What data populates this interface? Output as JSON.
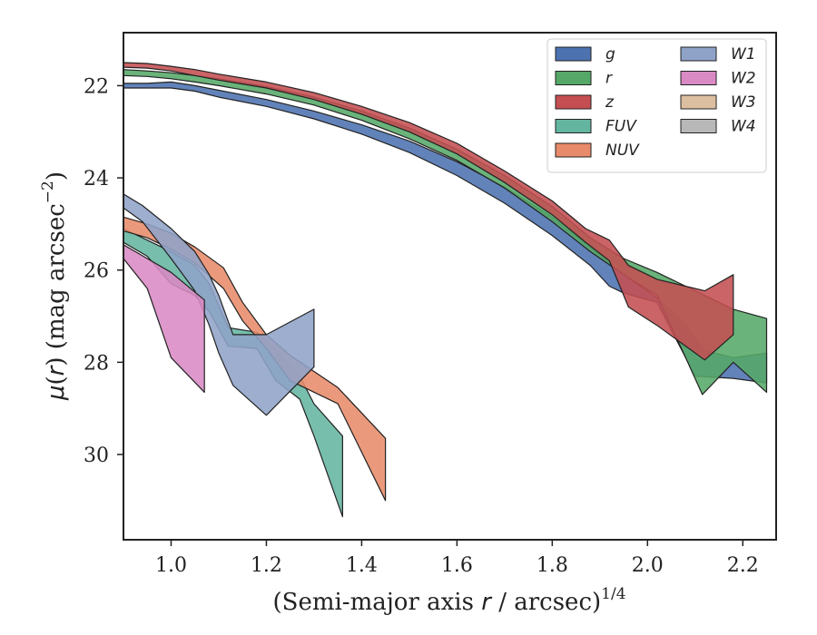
{
  "chart_data": {
    "type": "area",
    "xlabel": "(Semi-major axis r / arcsec)",
    "xlabel_parts": {
      "pre": "(Semi-major axis ",
      "var": "r",
      "post": " / arcsec)",
      "sup": "1/4"
    },
    "ylabel_parts": {
      "mu": "μ",
      "pre": "(",
      "var": "r",
      "post": ") (mag arcsec",
      "sup": "−2",
      "close": ")"
    },
    "xlim": [
      0.9,
      2.27
    ],
    "ylim": [
      31.85,
      20.85
    ],
    "y_inverted": true,
    "xticks": [
      "1.0",
      "1.2",
      "1.4",
      "1.6",
      "1.8",
      "2.0",
      "2.2"
    ],
    "yticks": [
      "22",
      "24",
      "26",
      "28",
      "30"
    ],
    "legend_position": "top-right",
    "legend_columns": 2,
    "series": [
      {
        "name": "g",
        "color": "#4c72b0",
        "upper": [
          [
            0.9,
            21.95
          ],
          [
            0.95,
            21.95
          ],
          [
            1.0,
            21.92
          ],
          [
            1.05,
            22.0
          ],
          [
            1.1,
            22.1
          ],
          [
            1.2,
            22.3
          ],
          [
            1.3,
            22.55
          ],
          [
            1.4,
            22.85
          ],
          [
            1.5,
            23.2
          ],
          [
            1.6,
            23.65
          ],
          [
            1.7,
            24.2
          ],
          [
            1.8,
            24.85
          ],
          [
            1.88,
            25.5
          ],
          [
            1.95,
            26.1
          ],
          [
            2.02,
            26.6
          ],
          [
            2.08,
            27.2
          ],
          [
            2.12,
            27.75
          ],
          [
            2.18,
            27.9
          ],
          [
            2.25,
            27.8
          ]
        ],
        "lower": [
          [
            0.9,
            22.05
          ],
          [
            0.95,
            22.05
          ],
          [
            1.0,
            22.05
          ],
          [
            1.05,
            22.12
          ],
          [
            1.1,
            22.25
          ],
          [
            1.2,
            22.45
          ],
          [
            1.3,
            22.72
          ],
          [
            1.4,
            23.05
          ],
          [
            1.5,
            23.45
          ],
          [
            1.6,
            23.95
          ],
          [
            1.7,
            24.55
          ],
          [
            1.8,
            25.25
          ],
          [
            1.88,
            25.9
          ],
          [
            1.92,
            26.35
          ],
          [
            1.95,
            26.5
          ],
          [
            2.02,
            26.7
          ],
          [
            2.1,
            28.3
          ],
          [
            2.18,
            28.35
          ],
          [
            2.25,
            28.45
          ]
        ]
      },
      {
        "name": "r",
        "color": "#55a868",
        "upper": [
          [
            0.9,
            21.65
          ],
          [
            0.95,
            21.68
          ],
          [
            1.0,
            21.72
          ],
          [
            1.05,
            21.78
          ],
          [
            1.1,
            21.85
          ],
          [
            1.2,
            22.02
          ],
          [
            1.3,
            22.25
          ],
          [
            1.4,
            22.55
          ],
          [
            1.5,
            22.92
          ],
          [
            1.6,
            23.38
          ],
          [
            1.7,
            23.95
          ],
          [
            1.8,
            24.62
          ],
          [
            1.88,
            25.3
          ],
          [
            1.95,
            25.75
          ],
          [
            2.02,
            26.05
          ],
          [
            2.1,
            26.45
          ],
          [
            2.18,
            26.85
          ],
          [
            2.25,
            27.05
          ]
        ],
        "lower": [
          [
            0.9,
            21.78
          ],
          [
            0.95,
            21.8
          ],
          [
            1.0,
            21.85
          ],
          [
            1.05,
            21.92
          ],
          [
            1.1,
            22.0
          ],
          [
            1.2,
            22.18
          ],
          [
            1.3,
            22.42
          ],
          [
            1.4,
            22.75
          ],
          [
            1.5,
            23.15
          ],
          [
            1.6,
            23.62
          ],
          [
            1.7,
            24.22
          ],
          [
            1.8,
            24.95
          ],
          [
            1.88,
            25.6
          ],
          [
            1.95,
            26.1
          ],
          [
            2.02,
            26.55
          ],
          [
            2.08,
            27.9
          ],
          [
            2.115,
            28.7
          ],
          [
            2.18,
            28.0
          ],
          [
            2.25,
            28.65
          ]
        ]
      },
      {
        "name": "z",
        "color": "#c44e52",
        "upper": [
          [
            0.9,
            21.5
          ],
          [
            0.95,
            21.52
          ],
          [
            1.0,
            21.58
          ],
          [
            1.05,
            21.65
          ],
          [
            1.1,
            21.75
          ],
          [
            1.2,
            21.92
          ],
          [
            1.3,
            22.15
          ],
          [
            1.4,
            22.45
          ],
          [
            1.5,
            22.8
          ],
          [
            1.6,
            23.25
          ],
          [
            1.7,
            23.85
          ],
          [
            1.8,
            24.5
          ],
          [
            1.87,
            25.1
          ],
          [
            1.92,
            25.35
          ],
          [
            1.96,
            25.9
          ],
          [
            2.02,
            26.2
          ],
          [
            2.12,
            26.45
          ],
          [
            2.18,
            26.1
          ]
        ],
        "lower": [
          [
            0.9,
            21.6
          ],
          [
            0.95,
            21.62
          ],
          [
            1.0,
            21.68
          ],
          [
            1.05,
            21.78
          ],
          [
            1.1,
            21.88
          ],
          [
            1.2,
            22.05
          ],
          [
            1.3,
            22.3
          ],
          [
            1.4,
            22.62
          ],
          [
            1.5,
            23.0
          ],
          [
            1.6,
            23.48
          ],
          [
            1.7,
            24.1
          ],
          [
            1.8,
            24.8
          ],
          [
            1.87,
            25.4
          ],
          [
            1.92,
            25.8
          ],
          [
            1.96,
            26.8
          ],
          [
            2.02,
            27.2
          ],
          [
            2.12,
            27.95
          ],
          [
            2.18,
            27.4
          ]
        ]
      },
      {
        "name": "FUV",
        "color": "#64b5a0",
        "upper": [
          [
            0.9,
            25.1
          ],
          [
            0.95,
            25.35
          ],
          [
            1.0,
            25.6
          ],
          [
            1.05,
            25.9
          ],
          [
            1.08,
            26.3
          ],
          [
            1.12,
            27.25
          ],
          [
            1.18,
            27.35
          ],
          [
            1.22,
            27.75
          ],
          [
            1.27,
            28.3
          ],
          [
            1.3,
            28.9
          ],
          [
            1.36,
            29.6
          ]
        ],
        "lower": [
          [
            0.9,
            25.4
          ],
          [
            0.95,
            25.7
          ],
          [
            1.0,
            26.3
          ],
          [
            1.05,
            26.55
          ],
          [
            1.08,
            26.9
          ],
          [
            1.12,
            27.65
          ],
          [
            1.18,
            27.7
          ],
          [
            1.22,
            28.4
          ],
          [
            1.27,
            28.8
          ],
          [
            1.3,
            29.6
          ],
          [
            1.36,
            31.35
          ]
        ]
      },
      {
        "name": "NUV",
        "color": "#e88b6a",
        "upper": [
          [
            0.9,
            24.85
          ],
          [
            0.95,
            25.0
          ],
          [
            1.0,
            25.2
          ],
          [
            1.05,
            25.5
          ],
          [
            1.11,
            25.95
          ],
          [
            1.15,
            26.7
          ],
          [
            1.2,
            27.4
          ],
          [
            1.25,
            27.85
          ],
          [
            1.35,
            28.55
          ],
          [
            1.45,
            29.65
          ]
        ],
        "lower": [
          [
            0.9,
            25.15
          ],
          [
            0.95,
            25.3
          ],
          [
            1.0,
            25.55
          ],
          [
            1.05,
            25.85
          ],
          [
            1.11,
            26.4
          ],
          [
            1.15,
            27.1
          ],
          [
            1.2,
            27.7
          ],
          [
            1.25,
            28.4
          ],
          [
            1.35,
            28.9
          ],
          [
            1.45,
            31.0
          ]
        ]
      },
      {
        "name": "W1",
        "color": "#8fa3c8",
        "upper": [
          [
            0.9,
            24.35
          ],
          [
            0.94,
            24.6
          ],
          [
            1.0,
            25.1
          ],
          [
            1.05,
            25.6
          ],
          [
            1.08,
            26.1
          ],
          [
            1.1,
            26.55
          ],
          [
            1.13,
            27.4
          ],
          [
            1.2,
            27.4
          ],
          [
            1.3,
            26.85
          ]
        ],
        "lower": [
          [
            0.9,
            24.65
          ],
          [
            0.94,
            24.95
          ],
          [
            1.0,
            25.75
          ],
          [
            1.05,
            26.45
          ],
          [
            1.08,
            27.2
          ],
          [
            1.1,
            27.8
          ],
          [
            1.13,
            28.5
          ],
          [
            1.2,
            29.15
          ],
          [
            1.3,
            28.1
          ]
        ]
      },
      {
        "name": "W2",
        "color": "#d98ac4",
        "upper": [
          [
            0.9,
            25.45
          ],
          [
            0.95,
            25.75
          ],
          [
            1.0,
            26.05
          ],
          [
            1.07,
            26.65
          ]
        ],
        "lower": [
          [
            0.9,
            25.75
          ],
          [
            0.95,
            26.4
          ],
          [
            1.0,
            27.9
          ],
          [
            1.07,
            28.65
          ]
        ]
      },
      {
        "name": "W3",
        "color": "#dcbfa0",
        "upper": [],
        "lower": []
      },
      {
        "name": "W4",
        "color": "#b8b8b8",
        "upper": [],
        "lower": []
      }
    ]
  }
}
